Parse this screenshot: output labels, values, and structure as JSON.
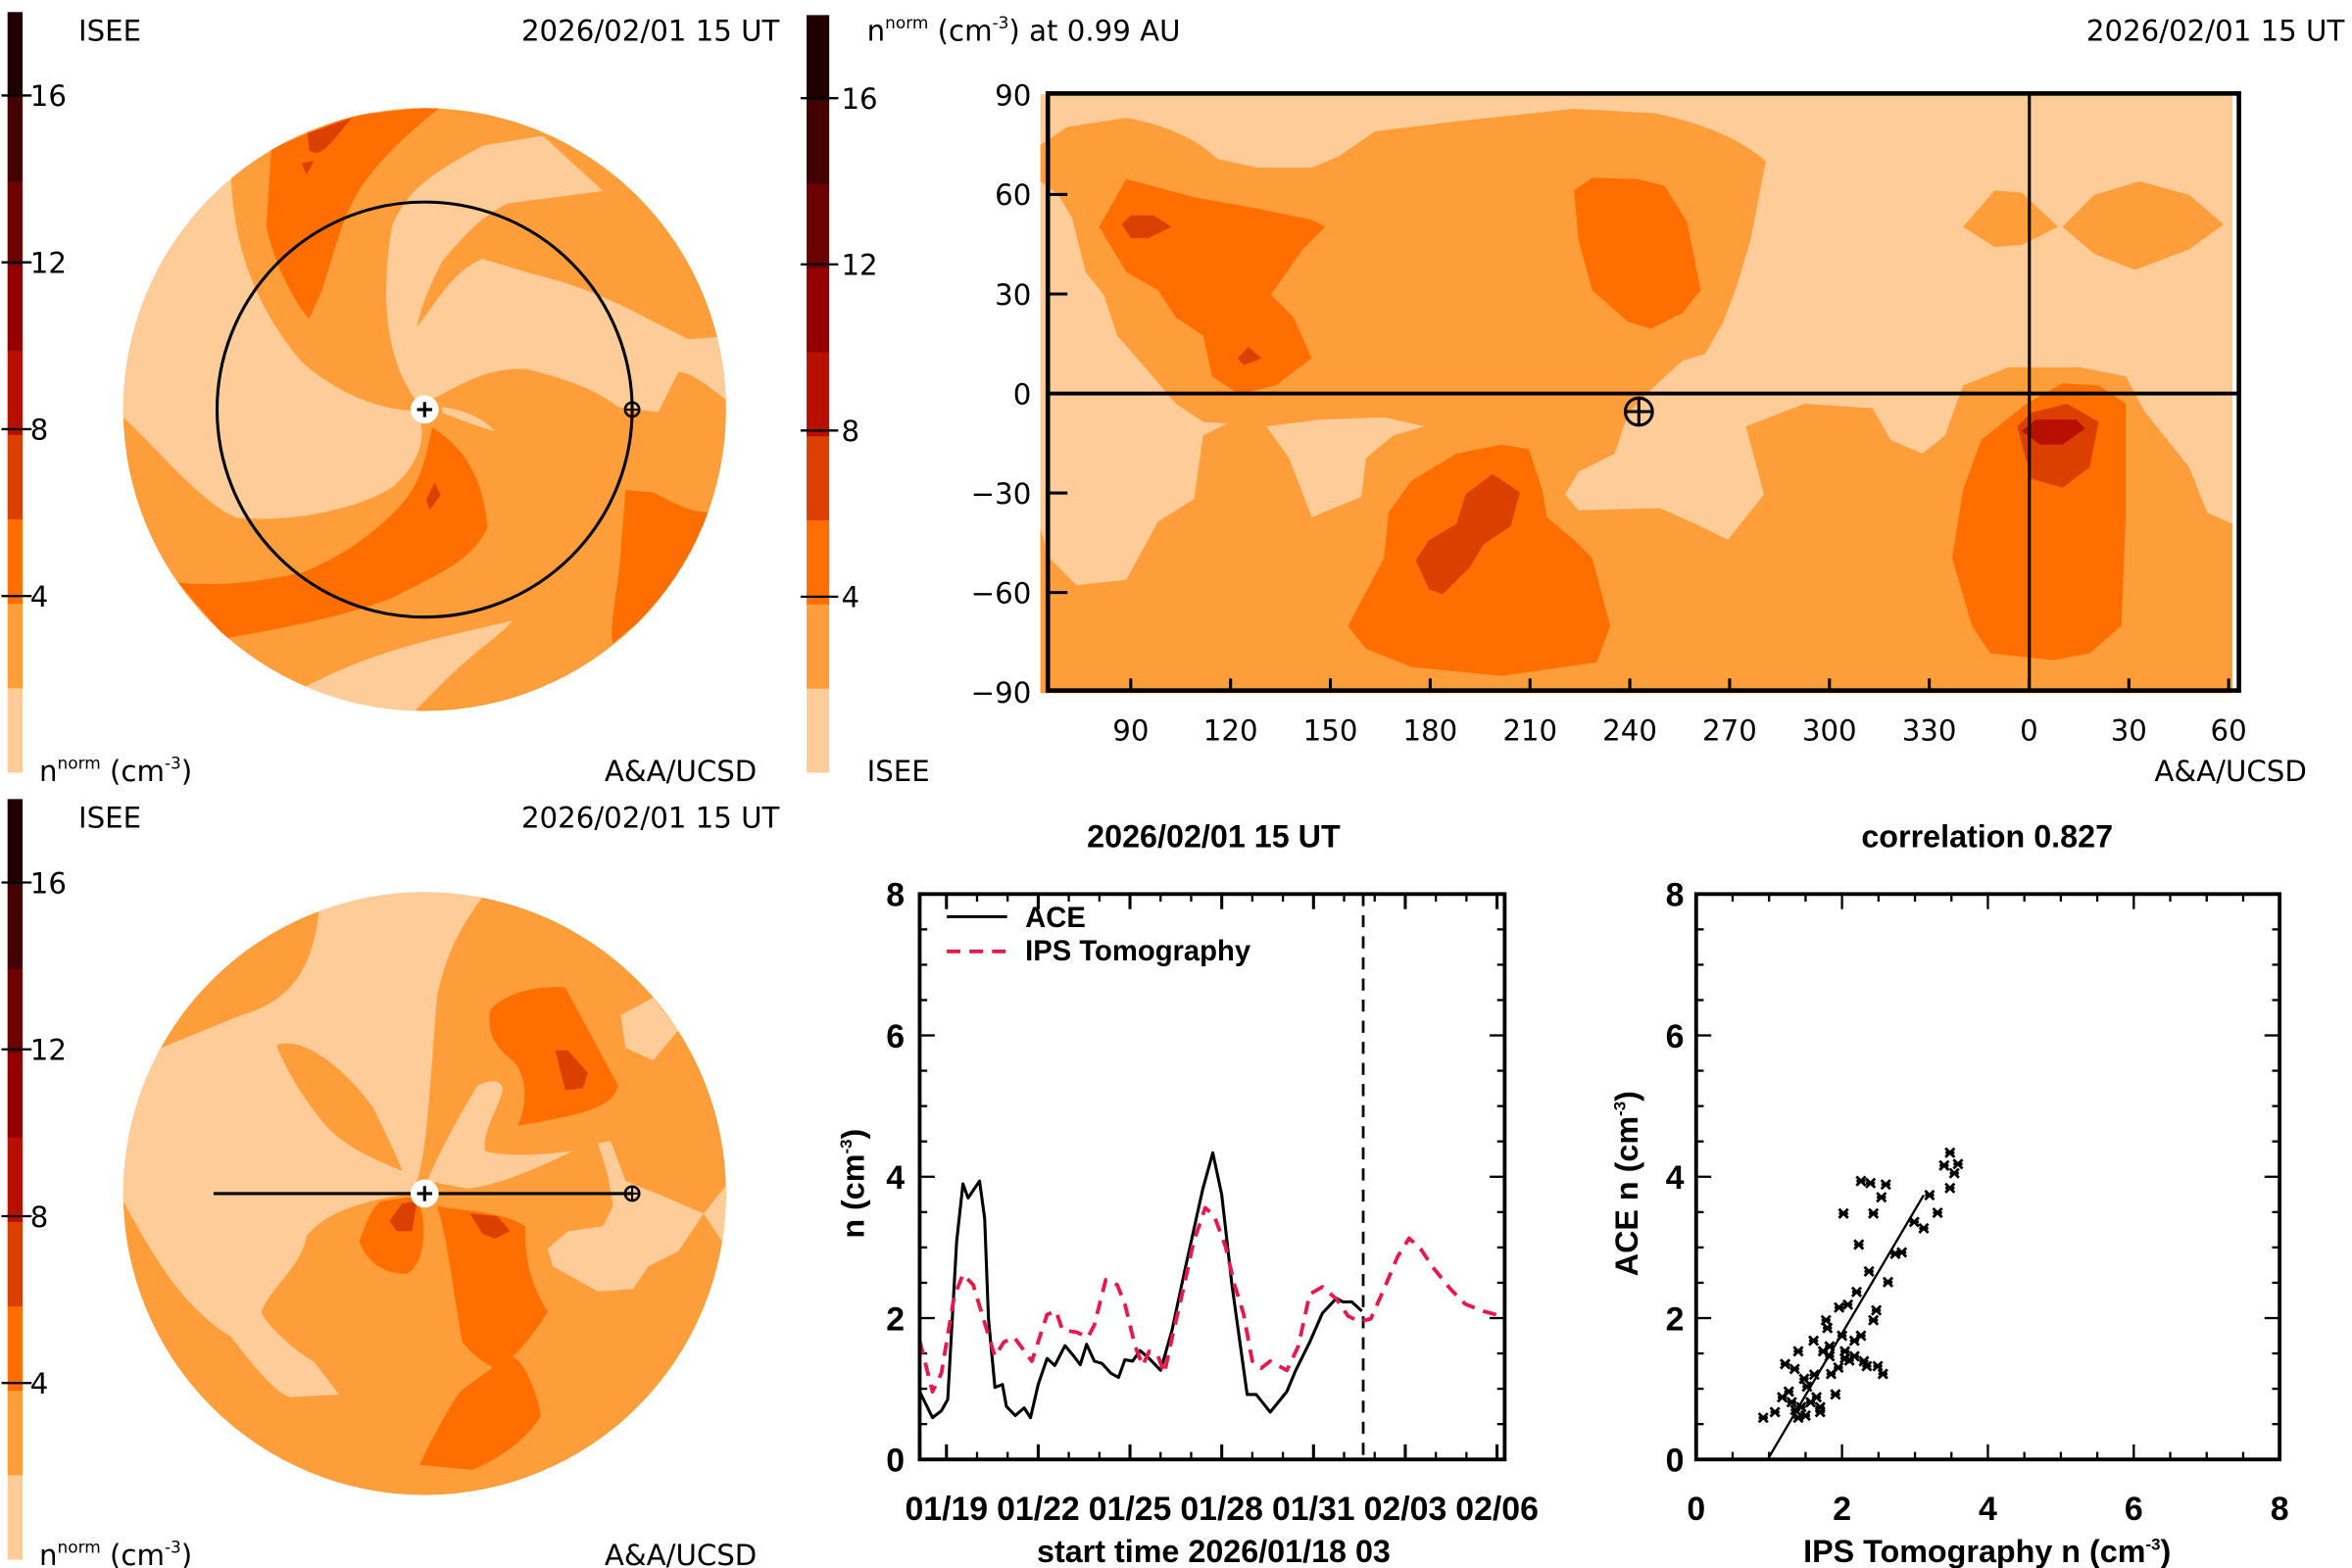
{
  "colors": {
    "levels": [
      0,
      2,
      4,
      6,
      8,
      10,
      12,
      14,
      16,
      18
    ],
    "bands": [
      "#FECC98",
      "#FE9E3A",
      "#FF6E00",
      "#DC4000",
      "#B81000",
      "#940000",
      "#6C0000",
      "#440000",
      "#200000"
    ],
    "ace_line": "#000000",
    "ips_line": "#E8194A"
  },
  "colorbar_ticks": [
    "4",
    "8",
    "12",
    "16"
  ],
  "panel_ecliptic": {
    "left_label": "ISEE",
    "datetime": "2026/02/01 15 UT",
    "credit": "A&A/UCSD",
    "cb_label": [
      "n",
      "norm",
      " (cm",
      "-3",
      ")"
    ]
  },
  "panel_map": {
    "title": [
      "n",
      "norm",
      " (cm",
      "-3",
      ") at 0.99 AU"
    ],
    "datetime": "2026/02/01 15 UT",
    "left_label": "ISEE",
    "credit": "A&A/UCSD",
    "lon_ticks": [
      "90",
      "120",
      "150",
      "180",
      "210",
      "240",
      "270",
      "300",
      "330",
      "0",
      "30",
      "60"
    ],
    "lat_ticks": [
      "90",
      "60",
      "30",
      "0",
      "−30",
      "−60",
      "−90"
    ]
  },
  "panel_meridional": {
    "left_label": "ISEE",
    "datetime": "2026/02/01 15 UT",
    "credit": "A&A/UCSD",
    "cb_label": [
      "n",
      "norm",
      " (cm",
      "-3",
      ")"
    ]
  },
  "chart_data": [
    {
      "type": "line",
      "title": "2026/02/01 15 UT",
      "xlabel": "start time 2026/01/18 03",
      "ylabel": [
        "n (cm",
        "-3",
        ")"
      ],
      "xlim": [
        "2026-01-18T03",
        "2026-02-06T06"
      ],
      "ylim": [
        0,
        8
      ],
      "yticks": [
        "0",
        "2",
        "4",
        "6",
        "8"
      ],
      "xticks": [
        {
          "label": "01/19",
          "date": "2026-01-19T00"
        },
        {
          "label": "01/22",
          "date": "2026-01-22T00"
        },
        {
          "label": "01/25",
          "date": "2026-01-25T00"
        },
        {
          "label": "01/28",
          "date": "2026-01-28T00"
        },
        {
          "label": "01/31",
          "date": "2026-01-31T00"
        },
        {
          "label": "02/03",
          "date": "2026-02-03T00"
        },
        {
          "label": "02/06",
          "date": "2026-02-06T00"
        }
      ],
      "current_time": "2026-02-01T15",
      "legend_position": "top-left",
      "series": [
        {
          "name": "ACE",
          "style": "solid",
          "points": [
            [
              "2026-01-18T03",
              0.96
            ],
            [
              "2026-01-18T13",
              0.59
            ],
            [
              "2026-01-18T20",
              0.69
            ],
            [
              "2026-01-19T01",
              0.85
            ],
            [
              "2026-01-19T08",
              3.08
            ],
            [
              "2026-01-19T13",
              3.9
            ],
            [
              "2026-01-19T17",
              3.7
            ],
            [
              "2026-01-20T02",
              3.94
            ],
            [
              "2026-01-20T06",
              3.41
            ],
            [
              "2026-01-20T09",
              2.0
            ],
            [
              "2026-01-20T14",
              1.02
            ],
            [
              "2026-01-20T20",
              1.06
            ],
            [
              "2026-01-20T23",
              0.75
            ],
            [
              "2026-01-21T06",
              0.62
            ],
            [
              "2026-01-21T13",
              0.73
            ],
            [
              "2026-01-21T18",
              0.59
            ],
            [
              "2026-01-22T00",
              1.06
            ],
            [
              "2026-01-22T07",
              1.43
            ],
            [
              "2026-01-22T13",
              1.33
            ],
            [
              "2026-01-22T21",
              1.61
            ],
            [
              "2026-01-23T04",
              1.46
            ],
            [
              "2026-01-23T09",
              1.34
            ],
            [
              "2026-01-23T14",
              1.63
            ],
            [
              "2026-01-23T20",
              1.39
            ],
            [
              "2026-01-24T02",
              1.36
            ],
            [
              "2026-01-24T09",
              1.22
            ],
            [
              "2026-01-24T15",
              1.16
            ],
            [
              "2026-01-24T20",
              1.41
            ],
            [
              "2026-01-25T02",
              1.39
            ],
            [
              "2026-01-25T08",
              1.54
            ],
            [
              "2026-01-25T15",
              1.43
            ],
            [
              "2026-01-26T00",
              1.26
            ],
            [
              "2026-01-26T09",
              1.83
            ],
            [
              "2026-01-26T19",
              2.67
            ],
            [
              "2026-01-27T09",
              3.82
            ],
            [
              "2026-01-27T17",
              4.34
            ],
            [
              "2026-01-28T00",
              3.75
            ],
            [
              "2026-01-28T08",
              2.47
            ],
            [
              "2026-01-28T20",
              0.92
            ],
            [
              "2026-01-29T03",
              0.92
            ],
            [
              "2026-01-29T14",
              0.67
            ],
            [
              "2026-01-30T03",
              0.96
            ],
            [
              "2026-01-30T10",
              1.26
            ],
            [
              "2026-01-30T21",
              1.66
            ],
            [
              "2026-01-31T07",
              2.07
            ],
            [
              "2026-01-31T18",
              2.28
            ],
            [
              "2026-01-31T23",
              2.23
            ],
            [
              "2026-02-01T06",
              2.23
            ],
            [
              "2026-02-01T14",
              2.1
            ]
          ]
        },
        {
          "name": "IPS Tomography",
          "style": "dashed",
          "points": [
            [
              "2026-01-18T03",
              1.68
            ],
            [
              "2026-01-18T13",
              0.96
            ],
            [
              "2026-01-18T20",
              1.22
            ],
            [
              "2026-01-19T06",
              2.3
            ],
            [
              "2026-01-19T13",
              2.62
            ],
            [
              "2026-01-19T21",
              2.47
            ],
            [
              "2026-01-20T06",
              1.93
            ],
            [
              "2026-01-20T14",
              1.46
            ],
            [
              "2026-01-20T21",
              1.66
            ],
            [
              "2026-01-21T05",
              1.73
            ],
            [
              "2026-01-21T19",
              1.39
            ],
            [
              "2026-01-22T07",
              2.05
            ],
            [
              "2026-01-22T14",
              2.1
            ],
            [
              "2026-01-22T19",
              1.83
            ],
            [
              "2026-01-23T06",
              1.8
            ],
            [
              "2026-01-23T15",
              1.73
            ],
            [
              "2026-01-23T20",
              1.9
            ],
            [
              "2026-01-24T05",
              2.54
            ],
            [
              "2026-01-24T14",
              2.47
            ],
            [
              "2026-01-24T20",
              2.2
            ],
            [
              "2026-01-25T04",
              1.6
            ],
            [
              "2026-01-25T10",
              1.33
            ],
            [
              "2026-01-25T15",
              1.53
            ],
            [
              "2026-01-25T22",
              1.46
            ],
            [
              "2026-01-26T03",
              1.22
            ],
            [
              "2026-01-26T10",
              1.8
            ],
            [
              "2026-01-26T19",
              2.5
            ],
            [
              "2026-01-27T02",
              3.08
            ],
            [
              "2026-01-27T11",
              3.56
            ],
            [
              "2026-01-27T18",
              3.45
            ],
            [
              "2026-01-28T03",
              3.01
            ],
            [
              "2026-01-28T10",
              2.47
            ],
            [
              "2026-01-28T17",
              2.07
            ],
            [
              "2026-01-29T00",
              1.39
            ],
            [
              "2026-01-29T07",
              1.29
            ],
            [
              "2026-01-29T14",
              1.39
            ],
            [
              "2026-01-30T03",
              1.26
            ],
            [
              "2026-01-30T12",
              1.6
            ],
            [
              "2026-01-30T21",
              2.34
            ],
            [
              "2026-01-31T07",
              2.44
            ],
            [
              "2026-01-31T18",
              2.27
            ],
            [
              "2026-02-01T03",
              2.03
            ],
            [
              "2026-02-01T12",
              1.95
            ],
            [
              "2026-02-01T21",
              1.99
            ],
            [
              "2026-02-02T07",
              2.4
            ],
            [
              "2026-02-02T18",
              2.87
            ],
            [
              "2026-02-03T03",
              3.13
            ],
            [
              "2026-02-03T12",
              2.98
            ],
            [
              "2026-02-03T22",
              2.71
            ],
            [
              "2026-02-04T12",
              2.4
            ],
            [
              "2026-02-04T23",
              2.2
            ],
            [
              "2026-02-05T13",
              2.1
            ],
            [
              "2026-02-06T03",
              2.03
            ]
          ]
        }
      ]
    },
    {
      "type": "scatter",
      "title": "correlation 0.827",
      "xlabel": [
        "IPS Tomography n (cm",
        "-3",
        ")"
      ],
      "ylabel": [
        "ACE n (cm",
        "-3",
        ")"
      ],
      "xlim": [
        0,
        8
      ],
      "ylim": [
        0,
        8
      ],
      "xticks": [
        "0",
        "2",
        "4",
        "6",
        "8"
      ],
      "yticks": [
        "0",
        "2",
        "4",
        "6",
        "8"
      ],
      "fit_line": {
        "x": [
          0.98,
          3.12
        ],
        "y": [
          0,
          3.74
        ]
      },
      "points": [
        [
          0.92,
          0.59
        ],
        [
          1.08,
          0.67
        ],
        [
          1.22,
          1.35
        ],
        [
          1.35,
          1.28
        ],
        [
          1.4,
          1.53
        ],
        [
          1.27,
          0.96
        ],
        [
          1.31,
          0.81
        ],
        [
          1.44,
          0.74
        ],
        [
          1.4,
          0.59
        ],
        [
          1.52,
          1.03
        ],
        [
          1.61,
          1.68
        ],
        [
          1.7,
          0.67
        ],
        [
          1.65,
          0.88
        ],
        [
          1.74,
          1.53
        ],
        [
          1.78,
          1.97
        ],
        [
          1.8,
          1.86
        ],
        [
          1.85,
          1.21
        ],
        [
          1.91,
          0.92
        ],
        [
          1.96,
          2.15
        ],
        [
          2.0,
          1.75
        ],
        [
          2.02,
          3.48
        ],
        [
          2.04,
          1.53
        ],
        [
          2.08,
          2.19
        ],
        [
          2.17,
          1.68
        ],
        [
          2.2,
          2.37
        ],
        [
          2.23,
          3.04
        ],
        [
          2.26,
          1.75
        ],
        [
          2.26,
          3.94
        ],
        [
          2.3,
          1.39
        ],
        [
          2.34,
          1.32
        ],
        [
          2.37,
          2.66
        ],
        [
          2.39,
          3.91
        ],
        [
          2.43,
          3.48
        ],
        [
          2.43,
          1.97
        ],
        [
          2.47,
          2.11
        ],
        [
          2.49,
          1.32
        ],
        [
          2.54,
          3.71
        ],
        [
          2.56,
          1.21
        ],
        [
          2.6,
          3.89
        ],
        [
          2.63,
          2.51
        ],
        [
          2.73,
          2.91
        ],
        [
          2.82,
          2.93
        ],
        [
          2.99,
          3.36
        ],
        [
          3.12,
          3.27
        ],
        [
          3.2,
          3.74
        ],
        [
          3.31,
          3.49
        ],
        [
          3.4,
          4.16
        ],
        [
          3.48,
          4.34
        ],
        [
          3.48,
          3.84
        ],
        [
          3.54,
          4.05
        ],
        [
          3.59,
          4.18
        ],
        [
          1.18,
          0.88
        ],
        [
          1.48,
          1.14
        ],
        [
          1.57,
          0.81
        ],
        [
          1.7,
          0.74
        ],
        [
          1.83,
          1.6
        ],
        [
          2.04,
          1.43
        ],
        [
          2.17,
          1.46
        ],
        [
          1.83,
          1.46
        ],
        [
          1.36,
          0.7
        ],
        [
          1.5,
          0.62
        ],
        [
          1.62,
          1.2
        ],
        [
          1.95,
          1.3
        ],
        [
          2.1,
          1.4
        ]
      ]
    }
  ]
}
